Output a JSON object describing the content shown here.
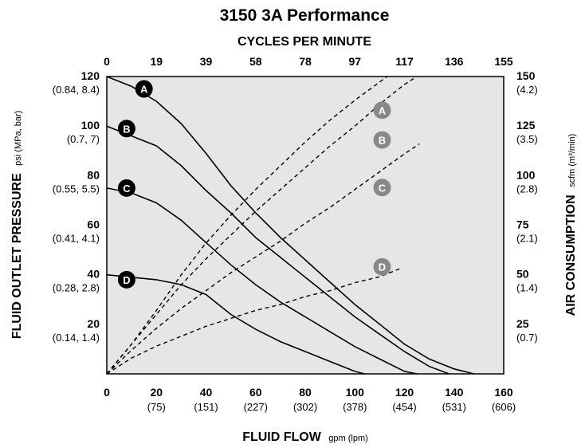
{
  "chart_data": {
    "type": "line",
    "title": "3150 3A Performance",
    "background": "#e6e6e6",
    "x_axis": {
      "label": "FLUID FLOW",
      "unit": "gpm (lpm)",
      "range": [
        0,
        160
      ],
      "ticks": [
        {
          "value": 0,
          "label": "0",
          "sub": ""
        },
        {
          "value": 20,
          "label": "20",
          "sub": "(75)"
        },
        {
          "value": 40,
          "label": "40",
          "sub": "(151)"
        },
        {
          "value": 60,
          "label": "60",
          "sub": "(227)"
        },
        {
          "value": 80,
          "label": "80",
          "sub": "(302)"
        },
        {
          "value": 100,
          "label": "100",
          "sub": "(378)"
        },
        {
          "value": 120,
          "label": "120",
          "sub": "(454)"
        },
        {
          "value": 140,
          "label": "140",
          "sub": "(531)"
        },
        {
          "value": 160,
          "label": "160",
          "sub": "(606)"
        }
      ]
    },
    "x2_axis": {
      "label": "CYCLES PER MINUTE",
      "ticks": [
        "0",
        "19",
        "39",
        "58",
        "78",
        "97",
        "117",
        "136",
        "155"
      ]
    },
    "y_axis": {
      "label": "FLUID OUTLET PRESSURE",
      "unit": "psi (MPa, bar)",
      "range": [
        0,
        120
      ],
      "ticks": [
        {
          "value": 120,
          "label": "120",
          "sub": "(0.84, 8.4)"
        },
        {
          "value": 100,
          "label": "100",
          "sub": "(0.7, 7)"
        },
        {
          "value": 80,
          "label": "80",
          "sub": "(0.55, 5.5)"
        },
        {
          "value": 60,
          "label": "60",
          "sub": "(0.41, 4.1)"
        },
        {
          "value": 40,
          "label": "40",
          "sub": "(0.28, 2.8)"
        },
        {
          "value": 20,
          "label": "20",
          "sub": "(0.14, 1.4)"
        }
      ]
    },
    "y2_axis": {
      "label": "AIR CONSUMPTION",
      "unit": "scfm (m³/min)",
      "range": [
        0,
        150
      ],
      "ticks": [
        {
          "value": 150,
          "label": "150",
          "sub": "(4.2)"
        },
        {
          "value": 125,
          "label": "125",
          "sub": "(3.5)"
        },
        {
          "value": 100,
          "label": "100",
          "sub": "(2.8)"
        },
        {
          "value": 75,
          "label": "75",
          "sub": "(2.1)"
        },
        {
          "value": 50,
          "label": "50",
          "sub": "(1.4)"
        },
        {
          "value": 25,
          "label": "25",
          "sub": "(0.7)"
        }
      ]
    },
    "pressure_curves": [
      {
        "name": "A",
        "points": [
          [
            0,
            120
          ],
          [
            10,
            116
          ],
          [
            20,
            110
          ],
          [
            30,
            101
          ],
          [
            40,
            89
          ],
          [
            50,
            76
          ],
          [
            60,
            65
          ],
          [
            70,
            55
          ],
          [
            80,
            46
          ],
          [
            90,
            37
          ],
          [
            100,
            28
          ],
          [
            110,
            20
          ],
          [
            120,
            12
          ],
          [
            130,
            6
          ],
          [
            140,
            2
          ],
          [
            148,
            0
          ]
        ]
      },
      {
        "name": "B",
        "points": [
          [
            0,
            100
          ],
          [
            10,
            96
          ],
          [
            20,
            92
          ],
          [
            30,
            84
          ],
          [
            40,
            74
          ],
          [
            50,
            65
          ],
          [
            60,
            55
          ],
          [
            70,
            47
          ],
          [
            80,
            39
          ],
          [
            90,
            31
          ],
          [
            100,
            23
          ],
          [
            110,
            16
          ],
          [
            120,
            9
          ],
          [
            130,
            3
          ],
          [
            138,
            0
          ]
        ]
      },
      {
        "name": "C",
        "points": [
          [
            0,
            75
          ],
          [
            10,
            73
          ],
          [
            20,
            69
          ],
          [
            30,
            62
          ],
          [
            40,
            53
          ],
          [
            50,
            44
          ],
          [
            60,
            36
          ],
          [
            70,
            29
          ],
          [
            80,
            23
          ],
          [
            90,
            17
          ],
          [
            100,
            11
          ],
          [
            110,
            6
          ],
          [
            120,
            1
          ],
          [
            125,
            0
          ]
        ]
      },
      {
        "name": "D",
        "points": [
          [
            0,
            40
          ],
          [
            10,
            39
          ],
          [
            20,
            38
          ],
          [
            30,
            36
          ],
          [
            40,
            32
          ],
          [
            50,
            24
          ],
          [
            60,
            18
          ],
          [
            70,
            13
          ],
          [
            80,
            9
          ],
          [
            90,
            5
          ],
          [
            100,
            1
          ],
          [
            104,
            0
          ]
        ]
      }
    ],
    "air_curves": [
      {
        "name": "A",
        "points": [
          [
            0,
            0
          ],
          [
            10,
            15
          ],
          [
            20,
            32
          ],
          [
            30,
            50
          ],
          [
            40,
            66
          ],
          [
            50,
            80
          ],
          [
            60,
            93
          ],
          [
            70,
            105
          ],
          [
            80,
            117
          ],
          [
            90,
            128
          ],
          [
            100,
            138
          ],
          [
            113,
            150
          ]
        ]
      },
      {
        "name": "B",
        "points": [
          [
            0,
            0
          ],
          [
            10,
            15
          ],
          [
            20,
            30
          ],
          [
            30,
            45
          ],
          [
            40,
            58
          ],
          [
            50,
            70
          ],
          [
            60,
            82
          ],
          [
            70,
            93
          ],
          [
            80,
            104
          ],
          [
            90,
            115
          ],
          [
            100,
            125
          ],
          [
            110,
            136
          ],
          [
            120,
            146
          ],
          [
            125,
            150
          ]
        ]
      },
      {
        "name": "C",
        "points": [
          [
            0,
            0
          ],
          [
            10,
            12
          ],
          [
            20,
            23
          ],
          [
            30,
            33
          ],
          [
            40,
            42
          ],
          [
            50,
            51
          ],
          [
            60,
            59
          ],
          [
            70,
            67
          ],
          [
            80,
            76
          ],
          [
            90,
            84
          ],
          [
            100,
            93
          ],
          [
            110,
            102
          ],
          [
            120,
            111
          ],
          [
            126,
            116
          ]
        ]
      },
      {
        "name": "D",
        "points": [
          [
            0,
            0
          ],
          [
            10,
            8
          ],
          [
            20,
            14
          ],
          [
            30,
            19
          ],
          [
            40,
            24
          ],
          [
            50,
            28
          ],
          [
            60,
            32
          ],
          [
            70,
            35
          ],
          [
            80,
            39
          ],
          [
            90,
            42
          ],
          [
            100,
            46
          ],
          [
            110,
            49
          ],
          [
            118,
            53
          ]
        ]
      }
    ],
    "pressure_labels": [
      {
        "text": "A",
        "x": 15,
        "y": 115
      },
      {
        "text": "B",
        "x": 8,
        "y": 99
      },
      {
        "text": "C",
        "x": 8,
        "y": 75
      },
      {
        "text": "D",
        "x": 8,
        "y": 38
      }
    ],
    "air_labels": [
      {
        "text": "A",
        "x": 111,
        "y": 133
      },
      {
        "text": "B",
        "x": 111,
        "y": 118
      },
      {
        "text": "C",
        "x": 111,
        "y": 94
      },
      {
        "text": "D",
        "x": 111,
        "y": 54
      }
    ],
    "grid": false,
    "colors": {
      "pressure_line": "#000000",
      "air_line": "#000000",
      "pressure_badge": "#000000",
      "air_badge": "#888888",
      "plot_border": "#000000"
    }
  }
}
